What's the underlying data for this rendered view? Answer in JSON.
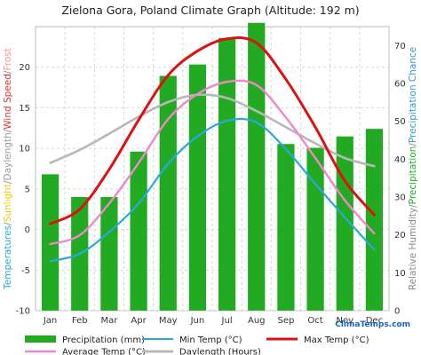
{
  "chart_data": {
    "type": "bar",
    "title": "Zielona Gora, Poland Climate Graph (Altitude: 192 m)",
    "categories": [
      "Jan",
      "Feb",
      "Mar",
      "Apr",
      "May",
      "Jun",
      "Jul",
      "Aug",
      "Sep",
      "Oct",
      "Nov",
      "Dec"
    ],
    "left_axis": {
      "ylim": [
        -10,
        25
      ],
      "ticks": [
        "20",
        "15",
        "10",
        "5",
        "0",
        "-5",
        "-10"
      ],
      "tick_values": [
        20,
        15,
        10,
        5,
        0,
        -5,
        -10
      ],
      "label_parts": [
        {
          "text": "Temperatures",
          "color": "#29a8e0"
        },
        {
          "text": "/",
          "color": "#888888"
        },
        {
          "text": "Sunlight",
          "color": "#e8d000"
        },
        {
          "text": "/",
          "color": "#888888"
        },
        {
          "text": "Daylength",
          "color": "#999999"
        },
        {
          "text": "/",
          "color": "#888888"
        },
        {
          "text": "Wind Speed",
          "color": "#e03030"
        },
        {
          "text": "/",
          "color": "#888888"
        },
        {
          "text": "Frost",
          "color": "#ff9090"
        }
      ]
    },
    "right_axis": {
      "ylim": [
        0,
        75
      ],
      "ticks": [
        "70",
        "60",
        "50",
        "40",
        "30",
        "20",
        "10",
        "0"
      ],
      "tick_values": [
        70,
        60,
        50,
        40,
        30,
        20,
        10,
        0
      ],
      "label_parts": [
        {
          "text": "Relative Humidity",
          "color": "#888888"
        },
        {
          "text": "/",
          "color": "#888888"
        },
        {
          "text": "Precipitation",
          "color": "#22aa22"
        },
        {
          "text": "/",
          "color": "#888888"
        },
        {
          "text": "Precipitation Chance",
          "color": "#3399cc"
        }
      ]
    },
    "series": [
      {
        "name": "Precipitation (mm)",
        "kind": "bar",
        "axis": "right",
        "color": "#22aa22",
        "values": [
          36,
          30,
          30,
          42,
          62,
          65,
          72,
          76,
          44,
          43,
          46,
          48
        ]
      },
      {
        "name": "Min Temp (°C)",
        "kind": "line",
        "axis": "left",
        "color": "#29a8e0",
        "values": [
          -3.9,
          -3.0,
          -0.3,
          3.2,
          8.1,
          11.5,
          13.4,
          13.2,
          9.9,
          5.6,
          1.5,
          -2.5
        ]
      },
      {
        "name": "Max Temp (°C)",
        "kind": "line",
        "axis": "left",
        "color": "#dd1111",
        "values": [
          0.7,
          2.5,
          7.4,
          13.5,
          19.0,
          22.0,
          23.5,
          23.0,
          18.5,
          12.6,
          6.0,
          1.8
        ]
      },
      {
        "name": "Average Temp (°C)",
        "kind": "line",
        "axis": "left",
        "color": "#ee88cc",
        "values": [
          -1.8,
          -0.7,
          3.2,
          8.2,
          13.6,
          16.7,
          18.2,
          17.8,
          13.8,
          8.8,
          3.6,
          -0.5
        ]
      },
      {
        "name": "Daylength (Hours)",
        "kind": "line",
        "axis": "left",
        "color": "#b8b8b8",
        "values": [
          8.2,
          9.8,
          11.8,
          13.9,
          15.7,
          16.6,
          16.2,
          14.6,
          12.6,
          10.6,
          8.8,
          7.8
        ]
      }
    ],
    "grid": true
  },
  "legend": {
    "precip": "Precipitation (mm)",
    "min": "Min Temp (°C)",
    "max": "Max Temp (°C)",
    "avg": "Average Temp (°C)",
    "day": "Daylength (Hours)"
  },
  "brand": "ClimaTemps.com",
  "colors": {
    "precip": "#22aa22",
    "min": "#29a8e0",
    "max": "#dd1111",
    "avg": "#ee88cc",
    "day": "#b8b8b8"
  }
}
